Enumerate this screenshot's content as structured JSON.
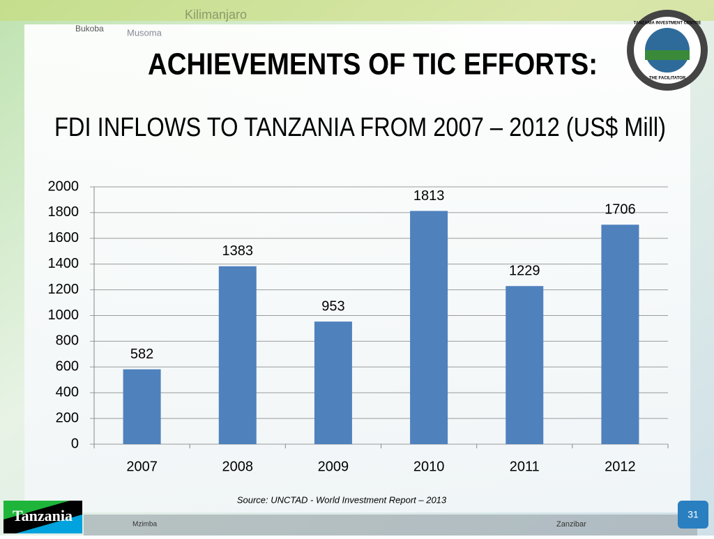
{
  "chart_data": {
    "type": "bar",
    "title": "ACHIEVEMENTS OF TIC EFFORTS:",
    "subtitle": "FDI INFLOWS TO TANZANIA FROM 2007 – 2012 (US$ Mill)",
    "categories": [
      "2007",
      "2008",
      "2009",
      "2010",
      "2011",
      "2012"
    ],
    "values": [
      582,
      1383,
      953,
      1813,
      1229,
      1706
    ],
    "color": "#4f81bd",
    "ylim": [
      0,
      2000
    ],
    "yticks": [
      0,
      200,
      400,
      600,
      800,
      1000,
      1200,
      1400,
      1600,
      1800,
      2000
    ],
    "grid": true,
    "source": "Source: UNCTAD - World Investment Report – 2013"
  },
  "slide_number": "31",
  "logo": {
    "badge": "Tanzania",
    "ring_top": "TANZANIA INVESTMENT CENTRE",
    "ring_bottom": "THE FACILITATOR"
  },
  "background_labels": [
    "Kilimanjaro",
    "Bukoba",
    "Musoma",
    "Zanzibar",
    "Mzimba"
  ]
}
